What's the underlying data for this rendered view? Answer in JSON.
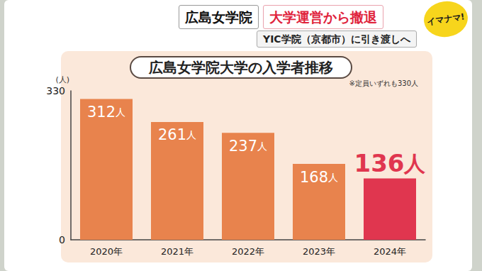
{
  "header": {
    "name": "広島女学院",
    "headline": "大学運営から撤退",
    "subline": "YIC学院（京都市）に引き渡しへ",
    "logo": "イマナマ!"
  },
  "chart_data": {
    "type": "bar",
    "title": "広島女学院大学の入学者推移",
    "y_label": "(人)",
    "annotation": "※定員いずれも330人",
    "categories": [
      "2020年",
      "2021年",
      "2022年",
      "2023年",
      "2024年"
    ],
    "values": [
      312,
      261,
      237,
      168,
      136
    ],
    "value_labels": [
      "312人",
      "261人",
      "237人",
      "168人",
      "136人"
    ],
    "colors": [
      "#e8834d",
      "#e8834d",
      "#e8834d",
      "#e8834d",
      "#e0364f"
    ],
    "ylim": [
      0,
      330
    ],
    "yticks": [
      0,
      330
    ],
    "grid": false,
    "data_labels": true
  }
}
